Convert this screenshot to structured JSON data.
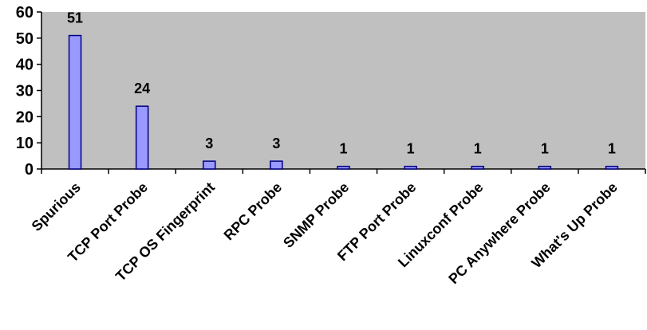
{
  "chart_data": {
    "type": "bar",
    "title": "",
    "xlabel": "",
    "ylabel": "",
    "categories": [
      "Spurious",
      "TCP Port Probe",
      "TCP OS Fingerprint",
      "RPC Probe",
      "SNMP Probe",
      "FTP Port Probe",
      "Linuxconf Probe",
      "PC Anywhere Probe",
      "What's Up Probe"
    ],
    "values": [
      51,
      24,
      3,
      3,
      1,
      1,
      1,
      1,
      1
    ],
    "data_labels": [
      "51",
      "24",
      "3",
      "3",
      "1",
      "1",
      "1",
      "1",
      "1"
    ],
    "ylim": [
      0,
      60
    ],
    "yticks": [
      "0",
      "10",
      "20",
      "30",
      "40",
      "50",
      "60"
    ],
    "grid": false,
    "legend": "none",
    "colors": {
      "plot_background": "#c0c0c0",
      "bar_fill": "#9999ff",
      "bar_stroke": "#000080",
      "axis": "#000000"
    }
  }
}
